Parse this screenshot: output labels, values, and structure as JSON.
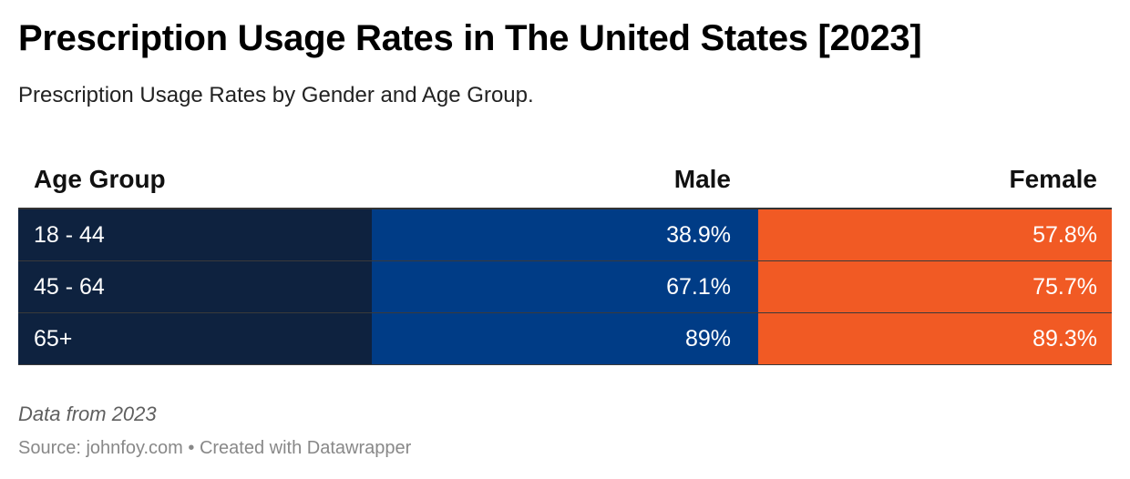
{
  "title": "Prescription Usage Rates in The United States [2023]",
  "subtitle": "Prescription Usage Rates by Gender and Age Group.",
  "notes": "Data from 2023",
  "source": "Source: johnfoy.com • Created with Datawrapper",
  "colors": {
    "age_column": "#0e223f",
    "male_column": "#003c86",
    "female_column": "#f15a24"
  },
  "chart_data": {
    "type": "table",
    "columns": [
      "Age Group",
      "Male",
      "Female"
    ],
    "rows": [
      [
        "18 - 44",
        "38.9%",
        "57.8%"
      ],
      [
        "45 - 64",
        "67.1%",
        "75.7%"
      ],
      [
        "65+",
        "89%",
        "89.3%"
      ]
    ]
  }
}
